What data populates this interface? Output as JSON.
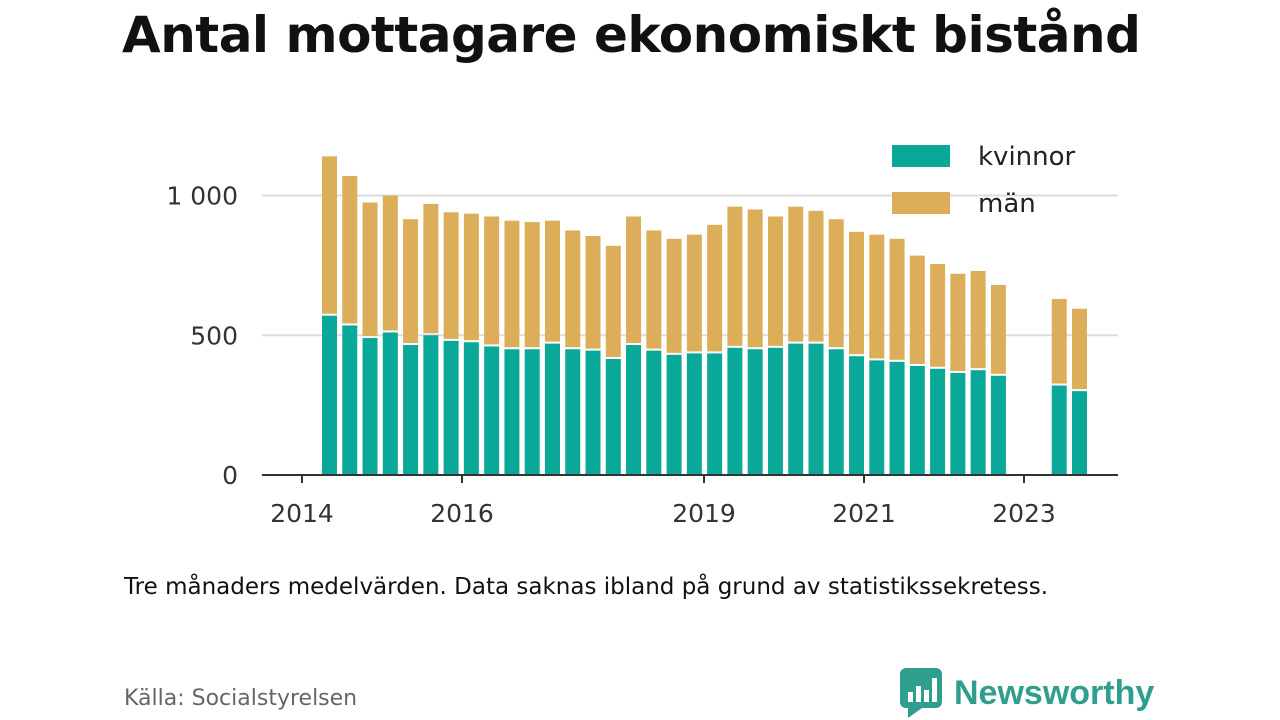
{
  "title": "Antal mottagare ekonomiskt bistånd",
  "note": "Tre månaders medelvärden. Data saknas ibland på grund av statistikssekretess.",
  "source": "Källa: Socialstyrelsen",
  "brand": {
    "name": "Newsworthy",
    "icon": "newsworthy-logo-icon"
  },
  "colors": {
    "kvinnor": "#0aa899",
    "man": "#ddae5a",
    "grid": "#dddddd",
    "axis": "#333333"
  },
  "chart_data": {
    "type": "bar",
    "stacked": true,
    "title": "Antal mottagare ekonomiskt bistånd",
    "x_tick_labels": [
      "2014",
      "2016",
      "2019",
      "2021",
      "2023"
    ],
    "y_tick_labels": [
      "0",
      "500",
      "1 000"
    ],
    "y_ticks": [
      0,
      500,
      1000
    ],
    "ylim": [
      0,
      1150
    ],
    "grid": true,
    "legend_position": "top-right",
    "series": [
      {
        "name": "kvinnor",
        "values": [
          570,
          535,
          490,
          510,
          465,
          500,
          480,
          475,
          460,
          450,
          450,
          470,
          450,
          445,
          415,
          465,
          445,
          430,
          435,
          435,
          455,
          450,
          455,
          470,
          470,
          450,
          425,
          410,
          405,
          390,
          380,
          365,
          375,
          355,
          null,
          null,
          320,
          300
        ]
      },
      {
        "name": "män",
        "values": [
          570,
          535,
          485,
          490,
          450,
          470,
          460,
          460,
          465,
          460,
          455,
          440,
          425,
          410,
          405,
          460,
          430,
          415,
          425,
          460,
          505,
          500,
          470,
          490,
          475,
          465,
          445,
          450,
          440,
          395,
          375,
          355,
          355,
          325,
          null,
          null,
          310,
          295
        ]
      }
    ],
    "notes": "38 consecutive quarterly bars from 2014 to 2023; two quarters missing in 2022–2023 due to statistical confidentiality."
  }
}
